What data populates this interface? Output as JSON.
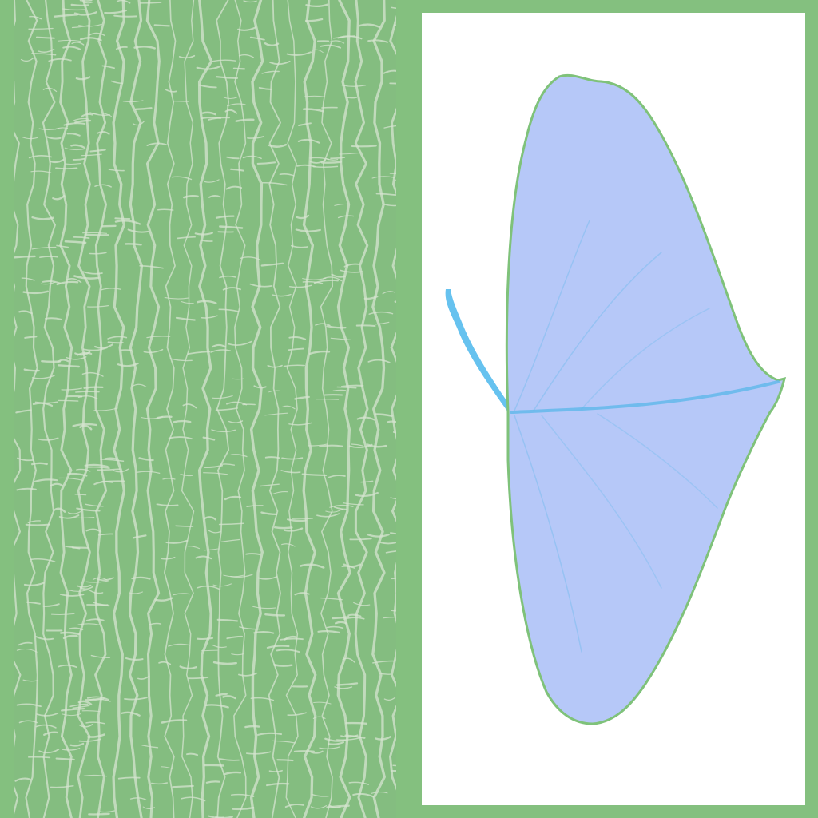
{
  "atlas": {
    "background_color": "#84c07f",
    "tiles": [
      {
        "name": "bark-texture",
        "base_color": "#84bd80",
        "pattern_color": "#d6e4d0"
      },
      {
        "name": "leaf-texture",
        "background_color": "#ffffff",
        "leaf_fill": "#b6c8f8",
        "leaf_outline": "#7fc27a",
        "vein_color": "#5fb8ea",
        "stem_color": "#66c2ef"
      }
    ]
  }
}
